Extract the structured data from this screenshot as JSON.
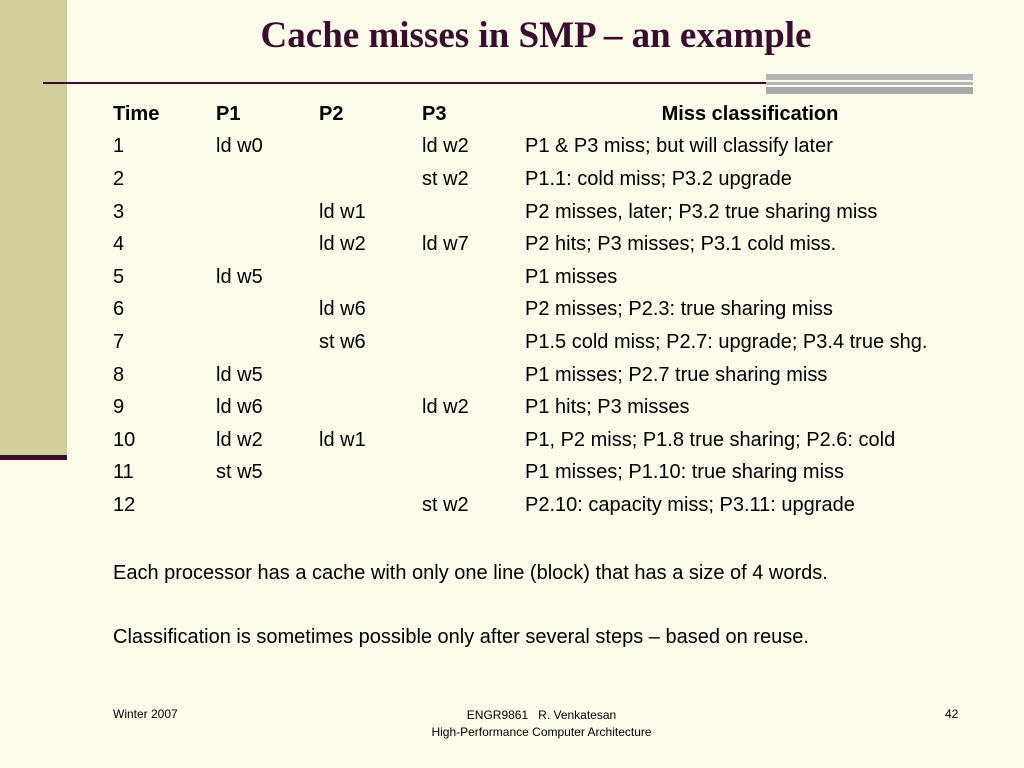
{
  "slide": {
    "title": "Cache misses in SMP – an example",
    "table": {
      "headers": [
        "Time",
        "P1",
        "P2",
        "P3",
        "Miss classification"
      ],
      "rows": [
        [
          "1",
          "ld w0",
          "",
          "ld w2",
          "P1 & P3 miss; but will classify later"
        ],
        [
          "2",
          "",
          "",
          "st w2",
          "P1.1: cold miss; P3.2 upgrade"
        ],
        [
          "3",
          "",
          "ld w1",
          "",
          "P2 misses, later; P3.2 true sharing miss"
        ],
        [
          "4",
          "",
          "ld w2",
          "ld w7",
          "P2 hits; P3 misses; P3.1 cold miss."
        ],
        [
          "5",
          "ld w5",
          "",
          "",
          "P1 misses"
        ],
        [
          "6",
          "",
          "ld w6",
          "",
          "P2 misses; P2.3: true sharing miss"
        ],
        [
          "7",
          "",
          "st w6",
          "",
          "P1.5 cold miss; P2.7: upgrade; P3.4 true shg."
        ],
        [
          "8",
          "ld w5",
          "",
          "",
          "P1 misses; P2.7 true sharing miss"
        ],
        [
          "9",
          "ld w6",
          "",
          "ld w2",
          "P1 hits; P3 misses"
        ],
        [
          "10",
          "ld w2",
          "ld w1",
          "",
          "P1, P2 miss; P1.8 true sharing; P2.6: cold"
        ],
        [
          "11",
          "st w5",
          "",
          "",
          "P1 misses; P1.10: true sharing miss"
        ],
        [
          "12",
          "",
          "",
          "st w2",
          "P2.10: capacity miss; P3.11: upgrade"
        ]
      ]
    },
    "notes": [
      "Each processor has a cache with only one line (block) that has a size of 4 words.",
      "Classification is sometimes possible only after several steps – based on reuse."
    ]
  },
  "footer": {
    "left": "Winter 2007",
    "center_line1": "ENGR9861   R. Venkatesan",
    "center_line2": "High-Performance Computer Architecture",
    "page_number": "42"
  },
  "colors": {
    "background": "#fbfbea",
    "sidebar": "#cfcf9c",
    "title": "#3a0c2e",
    "accent_gray": "#b5b5b5"
  }
}
